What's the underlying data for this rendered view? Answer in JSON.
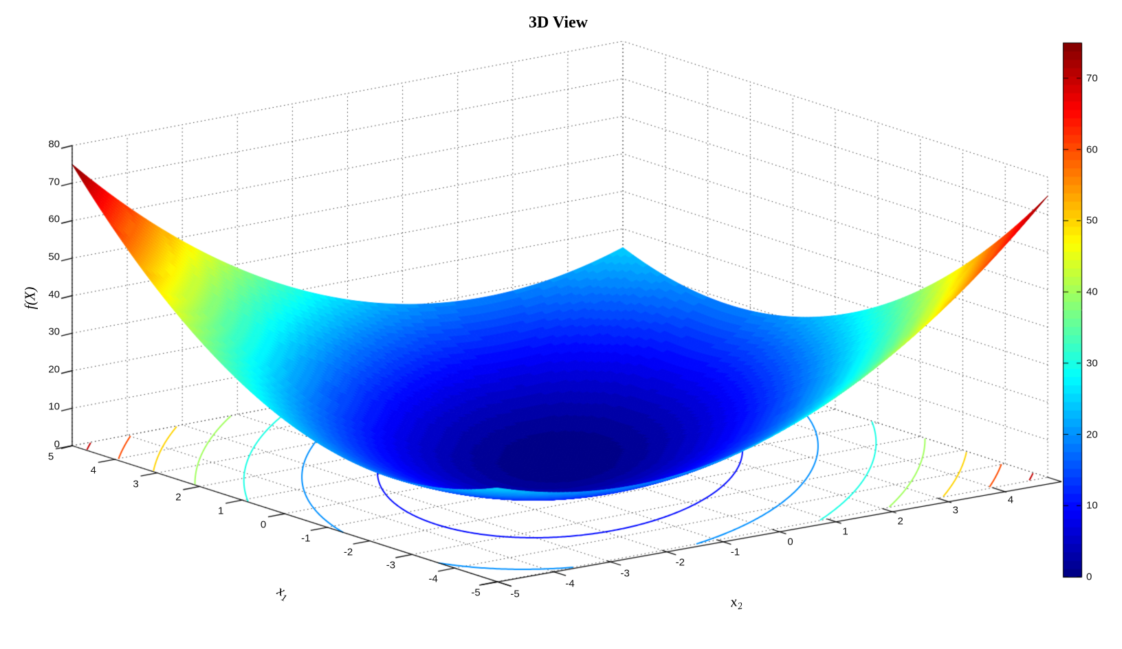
{
  "chart_data": {
    "type": "surface3d",
    "title": "3D View",
    "zlabel": "f(X)",
    "x1_label": {
      "base": "x",
      "sub": "1"
    },
    "x2_label": {
      "base": "x",
      "sub": "2"
    },
    "x1_range": [
      -5,
      5
    ],
    "x2_range": [
      -5,
      5
    ],
    "z_range": [
      0,
      80
    ],
    "x1_ticks": [
      5,
      4,
      3,
      2,
      1,
      0,
      -1,
      -2,
      -3,
      -4,
      -5
    ],
    "x2_ticks": [
      -5,
      -4,
      -3,
      -2,
      -1,
      0,
      1,
      2,
      3,
      4
    ],
    "z_ticks": [
      0,
      10,
      20,
      30,
      40,
      50,
      60,
      70,
      80
    ],
    "grid_style": "dotted",
    "colormap": "jet",
    "colors": {
      "background": "#ffffff",
      "axis": "#000000",
      "surface_min_color": "#00008f",
      "surface_max_color": "#800000"
    },
    "colorbar": {
      "min": 0,
      "max": 75,
      "ticks": [
        0,
        10,
        20,
        30,
        40,
        50,
        60,
        70
      ],
      "position": "right"
    },
    "contour_levels": [
      10,
      20,
      30,
      40,
      50,
      60,
      70
    ],
    "surface": {
      "min": 0,
      "max": 75,
      "x1": [
        -5,
        -4,
        -3,
        -2,
        -1,
        0,
        1,
        2,
        3,
        4,
        5
      ],
      "x2": [
        -5,
        -4,
        -3,
        -2,
        -1,
        0,
        1,
        2,
        3,
        4,
        5
      ],
      "f": [
        [
          25,
          21,
          19,
          19,
          21,
          25,
          31,
          39,
          49,
          61,
          75
        ],
        [
          21,
          16,
          13,
          12,
          13,
          16,
          21,
          28,
          37,
          48,
          61
        ],
        [
          19,
          13,
          9,
          7,
          7,
          9,
          13,
          19,
          27,
          37,
          49
        ],
        [
          19,
          12,
          7,
          4,
          3,
          4,
          7,
          12,
          19,
          28,
          39
        ],
        [
          21,
          13,
          7,
          3,
          1,
          1,
          3,
          7,
          13,
          21,
          31
        ],
        [
          25,
          16,
          9,
          4,
          1,
          0,
          1,
          4,
          9,
          16,
          25
        ],
        [
          31,
          21,
          13,
          7,
          3,
          1,
          1,
          3,
          7,
          13,
          21
        ],
        [
          39,
          28,
          19,
          12,
          7,
          4,
          3,
          4,
          7,
          12,
          19
        ],
        [
          49,
          37,
          27,
          19,
          13,
          9,
          7,
          7,
          9,
          13,
          19
        ],
        [
          61,
          48,
          37,
          28,
          21,
          16,
          13,
          12,
          13,
          16,
          21
        ],
        [
          75,
          61,
          49,
          39,
          31,
          25,
          21,
          19,
          19,
          21,
          25
        ]
      ]
    }
  }
}
